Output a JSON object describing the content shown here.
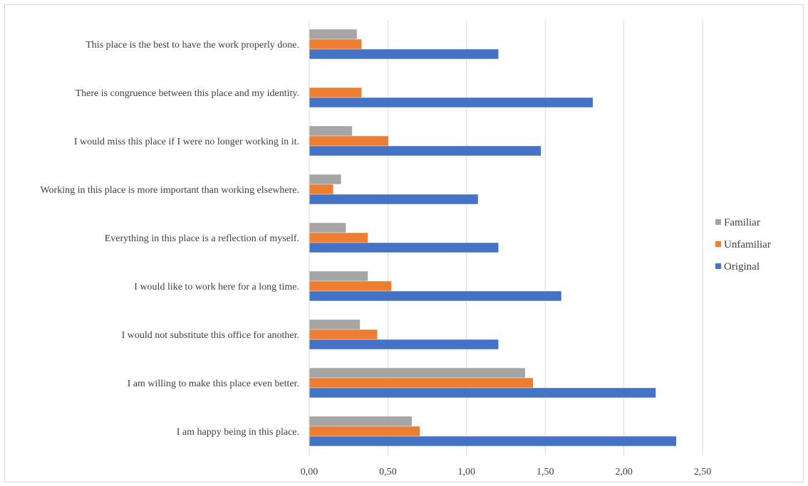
{
  "chart_data": {
    "type": "bar",
    "orientation": "horizontal",
    "title": "",
    "xlabel": "",
    "ylabel": "",
    "categories": [
      "This place is the best to have the work properly done.",
      "There is congruence between this place and my identity.",
      "I would miss this place if I were no longer working in it.",
      "Working in this place is more important than working elsewhere.",
      "Everything in this place is a reflection of myself.",
      "I would like to work here for a long time.",
      "I would not substitute this office for another.",
      "I am willing to make this place even better.",
      "I am happy being in this place."
    ],
    "series": [
      {
        "name": "Familiar",
        "color": "#a5a5a5",
        "values": [
          0.3,
          0,
          0.27,
          0.2,
          0.23,
          0.37,
          0.32,
          1.37,
          0.65
        ]
      },
      {
        "name": "Unfamiliar",
        "color": "#ed7d31",
        "values": [
          0.33,
          0.33,
          0.5,
          0.15,
          0.37,
          0.52,
          0.43,
          1.42,
          0.7
        ]
      },
      {
        "name": "Original",
        "color": "#4472c4",
        "values": [
          1.2,
          1.8,
          1.47,
          1.07,
          1.2,
          1.6,
          1.2,
          2.2,
          2.33
        ]
      }
    ],
    "xlim": [
      0,
      2.5
    ],
    "xticks": [
      0,
      0.5,
      1,
      1.5,
      2,
      2.5
    ],
    "xtick_labels": [
      "0,00",
      "0,50",
      "1,00",
      "1,50",
      "2,00",
      "2,50"
    ],
    "grid": true,
    "legend": {
      "position": "right",
      "entries": [
        "Familiar",
        "Unfamiliar",
        "Original"
      ]
    }
  }
}
